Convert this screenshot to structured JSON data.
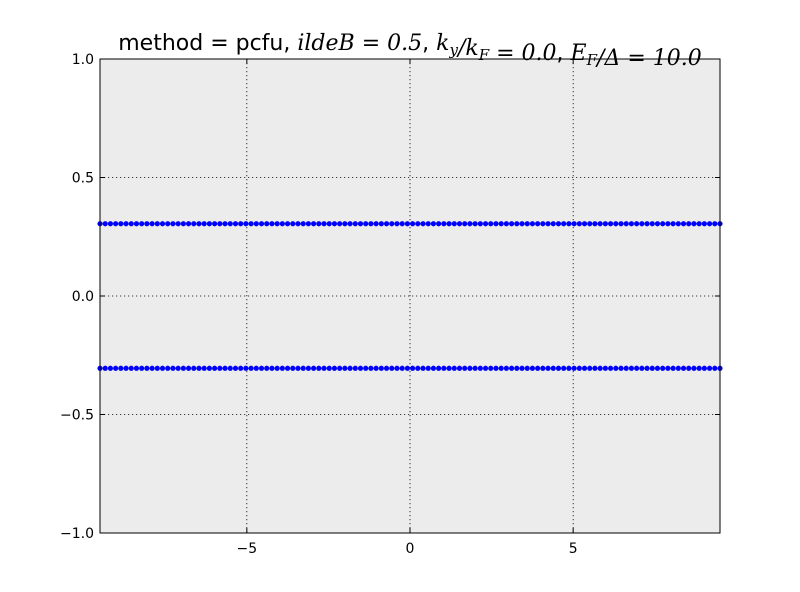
{
  "chart_data": {
    "type": "scatter",
    "title_plain": "method = pcfu, ",
    "title_math": "ildeB = 0.5, k_y/k_F = 0.0, E_F/Δ = 10.0",
    "title_parts": [
      {
        "text": "method = pcfu, ",
        "math": false
      },
      {
        "text": "ildeB",
        "math": true
      },
      {
        "text": " = 0.5",
        "math": true
      },
      {
        "text": ", ",
        "math": false
      },
      {
        "text": "k",
        "math": true
      },
      {
        "text": "y",
        "math": true,
        "sub": true
      },
      {
        "text": "/k",
        "math": true
      },
      {
        "text": "F",
        "math": true,
        "sub": true
      },
      {
        "text": " = 0.0",
        "math": true
      },
      {
        "text": ", ",
        "math": false
      },
      {
        "text": "E",
        "math": true
      },
      {
        "text": "F",
        "math": true,
        "sub": true
      },
      {
        "text": "/Δ = 10.0",
        "math": true
      }
    ],
    "xlabel": "",
    "ylabel": "",
    "xlim": [
      -9.5,
      9.5
    ],
    "ylim": [
      -1.0,
      1.0
    ],
    "xticks": [
      -5,
      0,
      5
    ],
    "xtick_labels": [
      "−5",
      "0",
      "5"
    ],
    "yticks": [
      1.0,
      0.5,
      0.0,
      -0.5,
      -1.0
    ],
    "ytick_labels": [
      "1.0",
      "0.5",
      "0.0",
      "−0.5",
      "−1.0"
    ],
    "grid": true,
    "background": "#ececec",
    "marker_color": "#0000ff",
    "series": [
      {
        "x_start": -9.5,
        "x_end": 9.5,
        "count": 120,
        "y": 0.305
      },
      {
        "x_start": -9.5,
        "x_end": 9.5,
        "count": 120,
        "y": -0.305
      }
    ]
  }
}
